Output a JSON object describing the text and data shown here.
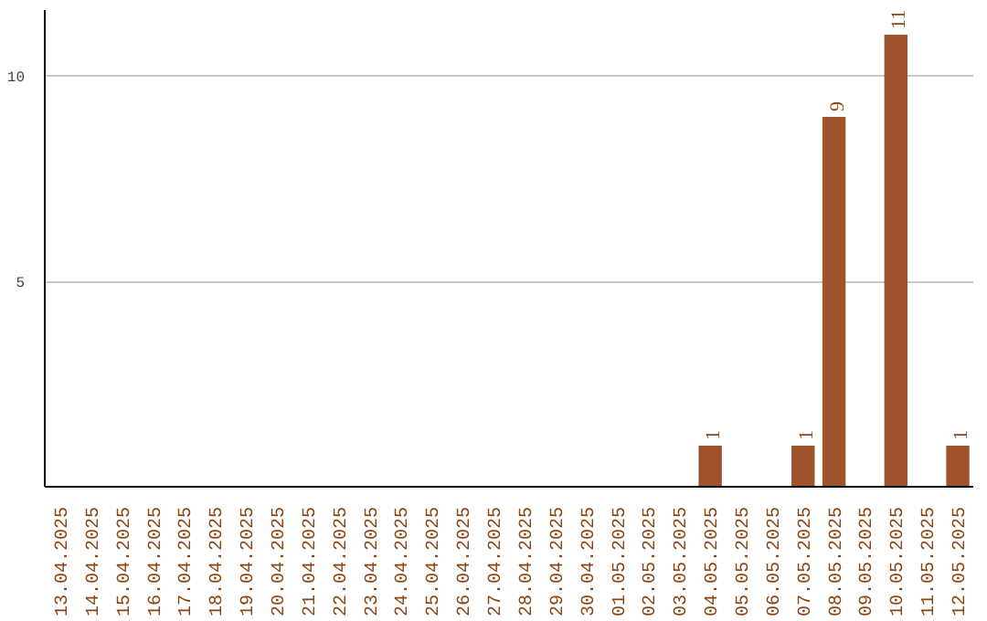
{
  "chart_data": {
    "type": "bar",
    "categories": [
      "13.04.2025",
      "14.04.2025",
      "15.04.2025",
      "16.04.2025",
      "17.04.2025",
      "18.04.2025",
      "19.04.2025",
      "20.04.2025",
      "21.04.2025",
      "22.04.2025",
      "23.04.2025",
      "24.04.2025",
      "25.04.2025",
      "26.04.2025",
      "27.04.2025",
      "28.04.2025",
      "29.04.2025",
      "30.04.2025",
      "01.05.2025",
      "02.05.2025",
      "03.05.2025",
      "04.05.2025",
      "05.05.2025",
      "06.05.2025",
      "07.05.2025",
      "08.05.2025",
      "09.05.2025",
      "10.05.2025",
      "11.05.2025",
      "12.05.2025"
    ],
    "values": [
      0,
      0,
      0,
      0,
      0,
      0,
      0,
      0,
      0,
      0,
      0,
      0,
      0,
      0,
      0,
      0,
      0,
      0,
      0,
      0,
      0,
      1,
      0,
      0,
      1,
      9,
      0,
      11,
      0,
      1
    ],
    "value_labels": [
      null,
      null,
      null,
      null,
      null,
      null,
      null,
      null,
      null,
      null,
      null,
      null,
      null,
      null,
      null,
      null,
      null,
      null,
      null,
      null,
      null,
      "1",
      null,
      null,
      "1",
      "9",
      null,
      "11",
      null,
      "1"
    ],
    "color": "#a0522d",
    "ylim": [
      0,
      11.6
    ],
    "yticks": [
      5,
      10
    ],
    "grid": "y"
  }
}
